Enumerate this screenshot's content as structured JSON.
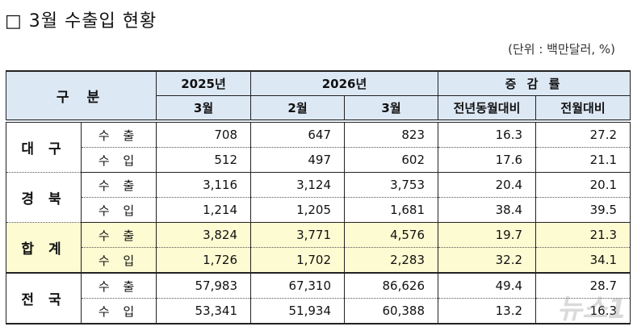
{
  "title": "□ 3월 수출입 현황",
  "unit": "(단위 : 백만달러, %)",
  "header": {
    "category": "구 분",
    "y2025": "2025년",
    "y2026": "2026년",
    "change": "증 감 률",
    "m2025_3": "3월",
    "m2026_2": "2월",
    "m2026_3": "3월",
    "yoy": "전년동월대비",
    "mom": "전월대비"
  },
  "rows": [
    {
      "region": "대 구",
      "lines": [
        {
          "type": "수 출",
          "v": [
            "708",
            "647",
            "823",
            "16.3",
            "27.2"
          ]
        },
        {
          "type": "수 입",
          "v": [
            "512",
            "497",
            "602",
            "17.6",
            "21.1"
          ]
        }
      ]
    },
    {
      "region": "경 북",
      "lines": [
        {
          "type": "수 출",
          "v": [
            "3,116",
            "3,124",
            "3,753",
            "20.4",
            "20.1"
          ]
        },
        {
          "type": "수 입",
          "v": [
            "1,214",
            "1,205",
            "1,681",
            "38.4",
            "39.5"
          ]
        }
      ]
    },
    {
      "region": "합 계",
      "lines": [
        {
          "type": "수 출",
          "v": [
            "3,824",
            "3,771",
            "4,576",
            "19.7",
            "21.3"
          ]
        },
        {
          "type": "수 입",
          "v": [
            "1,726",
            "1,702",
            "2,283",
            "32.2",
            "34.1"
          ]
        }
      ]
    },
    {
      "region": "전 국",
      "lines": [
        {
          "type": "수 출",
          "v": [
            "57,983",
            "67,310",
            "86,626",
            "49.4",
            "28.7"
          ]
        },
        {
          "type": "수 입",
          "v": [
            "53,341",
            "51,934",
            "60,388",
            "13.2",
            "16.3"
          ]
        }
      ]
    }
  ],
  "highlight_color": "#fdfbd2",
  "header_color": "#dde8f5",
  "watermark": "뉴스1"
}
